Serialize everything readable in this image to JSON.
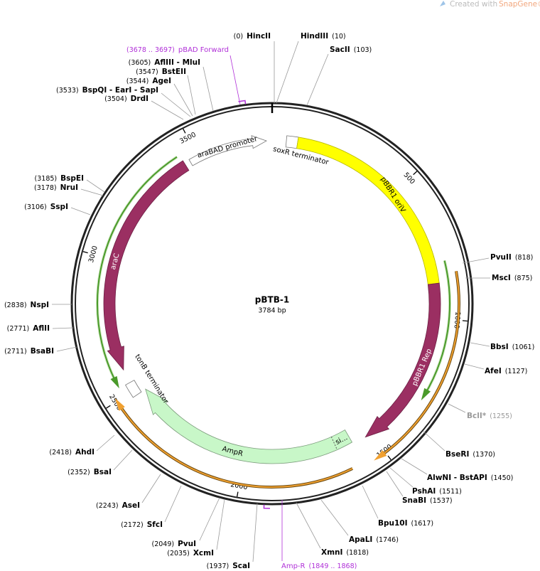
{
  "credit": {
    "prefix": "Created with",
    "brand": "SnapGene®"
  },
  "plasmid": {
    "name": "pBTB-1",
    "length": "3784 bp"
  },
  "ticks": [
    "500",
    "1000",
    "1500",
    "2000",
    "2500",
    "3000",
    "3500"
  ],
  "features": [
    {
      "label": "araBAD promoter"
    },
    {
      "label": "soxR terminator"
    },
    {
      "label": "pBBR1 oriV"
    },
    {
      "label": "pBBR1 Rep"
    },
    {
      "label": "araC"
    },
    {
      "label": "tonB terminator"
    },
    {
      "label": "AmpR"
    },
    {
      "label": "si..."
    }
  ],
  "primers": [
    {
      "name": "pBAD Forward",
      "position": "(3678 .. 3697)"
    },
    {
      "name": "Amp-R",
      "position": "(1849 .. 1868)"
    }
  ],
  "sites": [
    {
      "name": "HincII",
      "position": "(0)"
    },
    {
      "name": "HindIII",
      "position": "(10)"
    },
    {
      "name": "SacII",
      "position": "(103)"
    },
    {
      "name": "AflIII - MluI",
      "position": "(3605)"
    },
    {
      "name": "BstEII",
      "position": "(3547)"
    },
    {
      "name": "AgeI",
      "position": "(3544)"
    },
    {
      "name": "BspQI - EarI - SapI",
      "position": "(3533)"
    },
    {
      "name": "DrdI",
      "position": "(3504)"
    },
    {
      "name": "BspEI",
      "position": "(3185)"
    },
    {
      "name": "NruI",
      "position": "(3178)"
    },
    {
      "name": "SspI",
      "position": "(3106)"
    },
    {
      "name": "NspI",
      "position": "(2838)"
    },
    {
      "name": "AflII",
      "position": "(2771)"
    },
    {
      "name": "BsaBI",
      "position": "(2711)"
    },
    {
      "name": "AhdI",
      "position": "(2418)"
    },
    {
      "name": "BsaI",
      "position": "(2352)"
    },
    {
      "name": "AseI",
      "position": "(2243)"
    },
    {
      "name": "SfcI",
      "position": "(2172)"
    },
    {
      "name": "PvuI",
      "position": "(2049)"
    },
    {
      "name": "XcmI",
      "position": "(2035)"
    },
    {
      "name": "ScaI",
      "position": "(1937)"
    },
    {
      "name": "XmnI",
      "position": "(1818)"
    },
    {
      "name": "ApaLI",
      "position": "(1746)"
    },
    {
      "name": "Bpu10I",
      "position": "(1617)"
    },
    {
      "name": "SnaBI",
      "position": "(1537)"
    },
    {
      "name": "PshAI",
      "position": "(1511)"
    },
    {
      "name": "AlwNI - BstAPI",
      "position": "(1450)"
    },
    {
      "name": "BseRI",
      "position": "(1370)"
    },
    {
      "name": "BclI*",
      "position": "(1255)"
    },
    {
      "name": "AfeI",
      "position": "(1127)"
    },
    {
      "name": "BbsI",
      "position": "(1061)"
    },
    {
      "name": "MscI",
      "position": "(875)"
    },
    {
      "name": "PvuII",
      "position": "(818)"
    }
  ]
}
